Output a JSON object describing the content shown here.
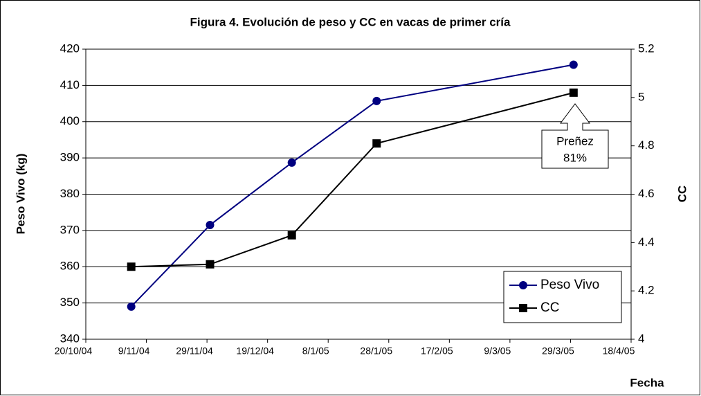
{
  "chart_data": {
    "type": "line",
    "title": "Figura 4. Evolución de peso y CC en vacas de primer cría",
    "x_label": "Fecha",
    "y_label": "Peso Vivo (kg)",
    "y2_label": "CC",
    "x": [
      "2004-11-04",
      "2004-11-30",
      "2004-12-27",
      "2005-01-24",
      "2005-03-30"
    ],
    "series": [
      {
        "name": "Peso Vivo",
        "color": "#000080",
        "marker": "circle",
        "values": [
          349,
          371.5,
          388.7,
          405.7,
          415.7
        ]
      },
      {
        "name": "CC",
        "color": "#000000",
        "marker": "square",
        "axis": "y2",
        "values": [
          4.3,
          4.31,
          4.43,
          4.81,
          5.02
        ]
      }
    ],
    "xlim": [
      "2004-10-20",
      "2005-04-18"
    ],
    "xticks": [
      {
        "value": "2004-10-20",
        "label": "20/10/04"
      },
      {
        "value": "2004-11-09",
        "label": "9/11/04"
      },
      {
        "value": "2004-11-29",
        "label": "29/11/04"
      },
      {
        "value": "2004-12-19",
        "label": "19/12/04"
      },
      {
        "value": "2005-01-08",
        "label": "8/1/05"
      },
      {
        "value": "2005-01-28",
        "label": "28/1/05"
      },
      {
        "value": "2005-02-17",
        "label": "17/2/05"
      },
      {
        "value": "2005-03-09",
        "label": "9/3/05"
      },
      {
        "value": "2005-03-29",
        "label": "29/3/05"
      },
      {
        "value": "2005-04-18",
        "label": "18/4/05"
      }
    ],
    "ylim": [
      340,
      420
    ],
    "yticks": [
      340,
      350,
      360,
      370,
      380,
      390,
      400,
      410,
      420
    ],
    "y2lim": [
      4,
      5.2
    ],
    "y2ticks": [
      4,
      4.2,
      4.4,
      4.6,
      4.8,
      5,
      5.2
    ],
    "grid": true,
    "legend": "lower right",
    "annotation": [
      "Preñez",
      "81%"
    ]
  }
}
